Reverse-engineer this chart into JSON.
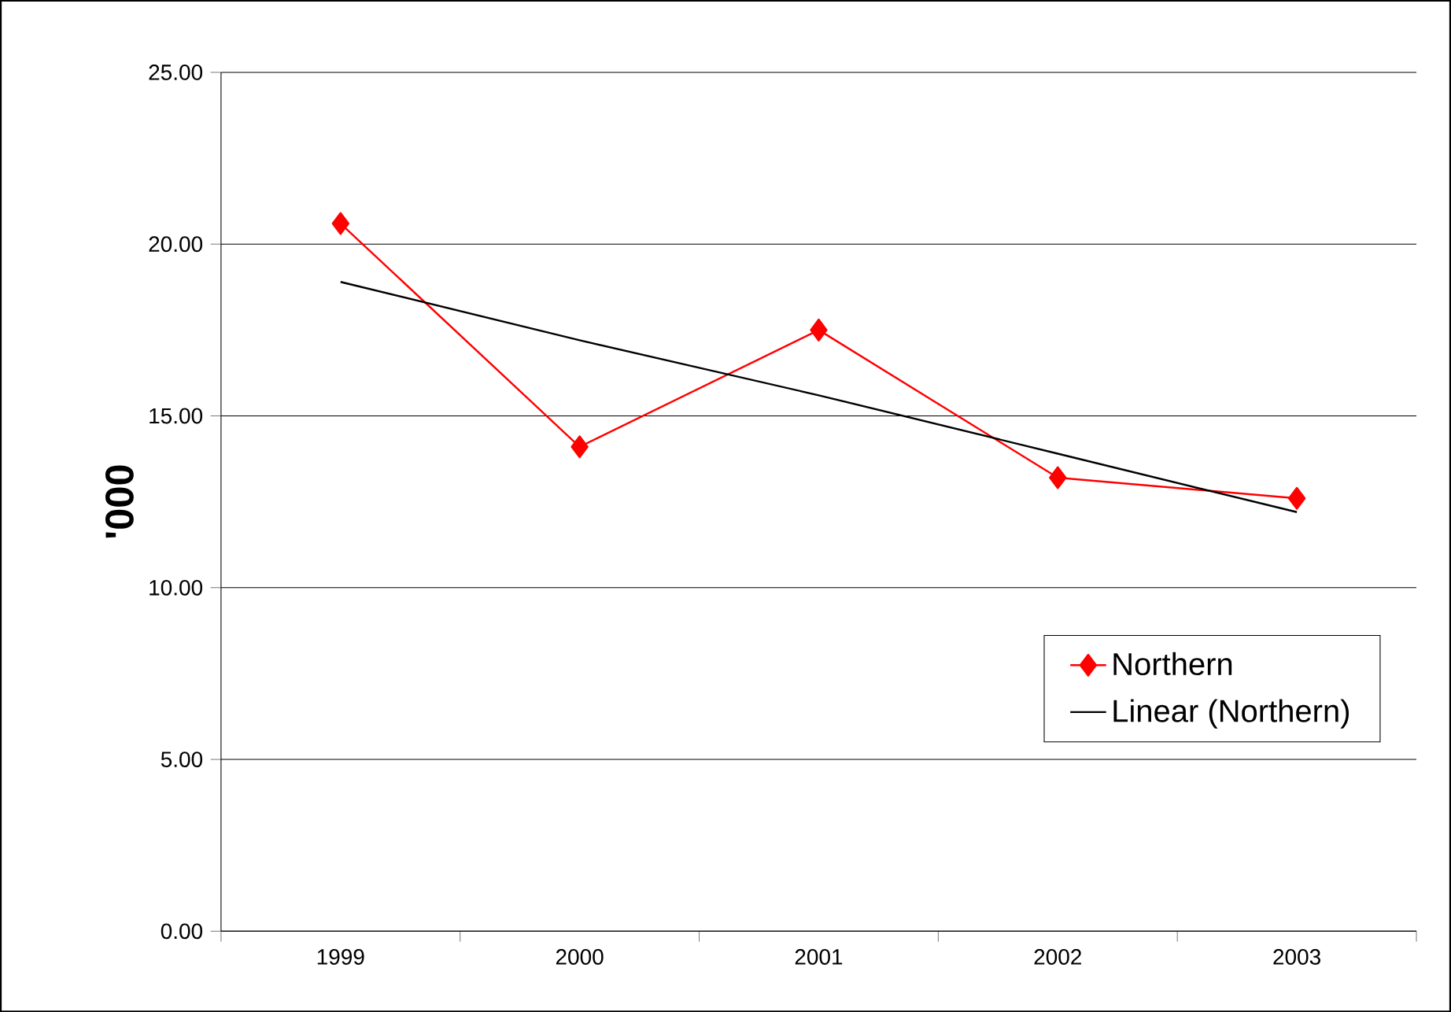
{
  "chart_data": {
    "type": "line",
    "ylabel": "'000",
    "categories": [
      "1999",
      "2000",
      "2001",
      "2002",
      "2003"
    ],
    "series": [
      {
        "name": "Northern",
        "color": "#ff0000",
        "values": [
          20.6,
          14.1,
          17.5,
          13.2,
          12.6
        ],
        "marker": "diamond"
      },
      {
        "name": "Linear (Northern)",
        "color": "#000000",
        "values": [
          18.9,
          17.2,
          15.6,
          13.9,
          12.2
        ],
        "marker": "none"
      }
    ],
    "ylim": [
      0,
      25
    ],
    "yticks": [
      {
        "value": 0,
        "label": "0.00"
      },
      {
        "value": 5,
        "label": "5.00"
      },
      {
        "value": 10,
        "label": "10.00"
      },
      {
        "value": 15,
        "label": "15.00"
      },
      {
        "value": 20,
        "label": "20.00"
      },
      {
        "value": 25,
        "label": "25.00"
      }
    ],
    "grid": "y",
    "legend": "right",
    "line_style": "solid"
  }
}
